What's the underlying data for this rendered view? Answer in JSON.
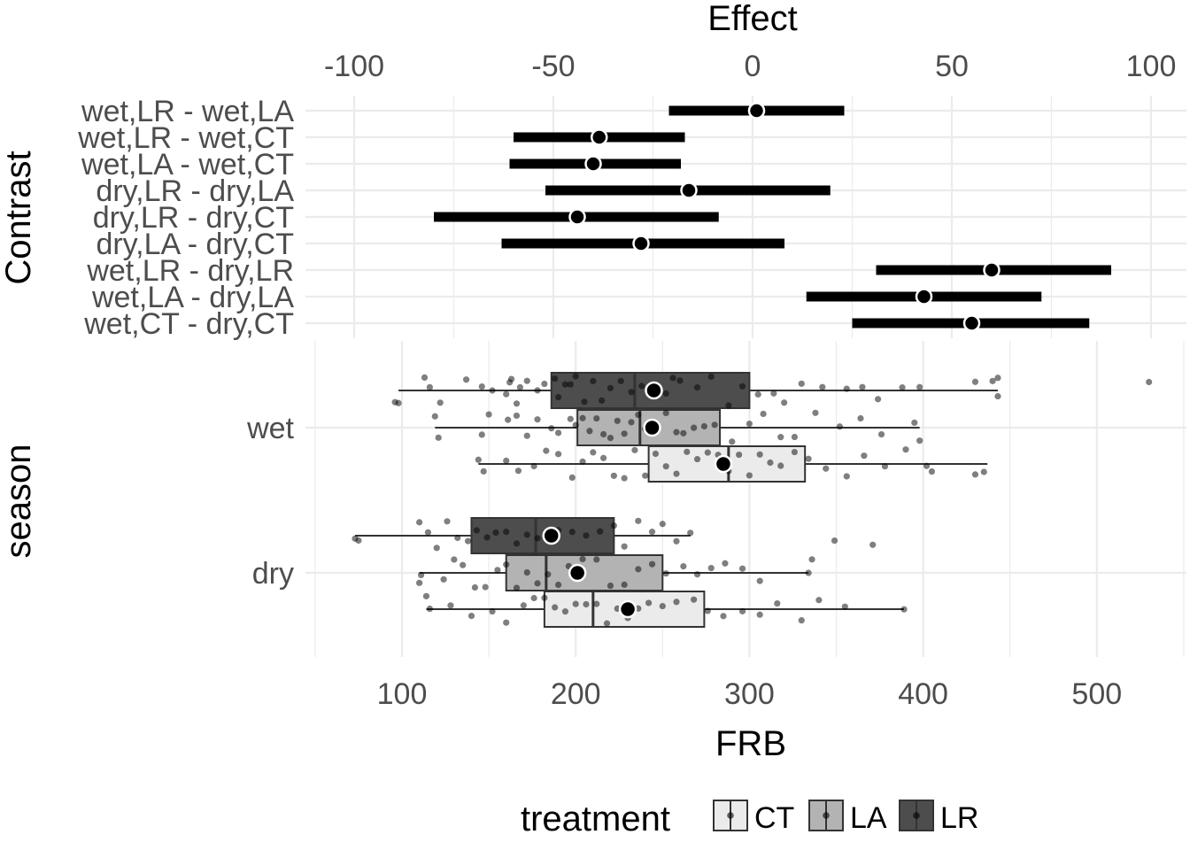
{
  "chart_data": [
    {
      "type": "errorbar",
      "title": "Effect",
      "xlabel": "Effect",
      "ylabel": "Contrast",
      "xlim": [
        -100,
        100
      ],
      "xticks": [
        "-100",
        "-50",
        "0",
        "50",
        "100"
      ],
      "xtick_values": [
        -100,
        -50,
        0,
        50,
        100
      ],
      "grid": true,
      "categories": [
        "wet,LR - wet,LA",
        "wet,LR - wet,CT",
        "wet,LA - wet,CT",
        "dry,LR - dry,LA",
        "dry,LR - dry,CT",
        "dry,LA - dry,CT",
        "wet,LR - dry,LR",
        "wet,LA - dry,LA",
        "wet,CT - dry,CT"
      ],
      "estimates": [
        1,
        -38.5,
        -40,
        -16,
        -44,
        -28,
        60,
        43,
        55
      ],
      "lower": [
        -21,
        -60,
        -61,
        -52,
        -80,
        -63,
        31,
        13.5,
        25
      ],
      "upper": [
        23,
        -17,
        -18,
        19.5,
        -8.5,
        8,
        90,
        72.5,
        84.5
      ]
    },
    {
      "type": "boxplot",
      "xlabel": "FRB",
      "ylabel": "season",
      "xlim": [
        50,
        550
      ],
      "xticks": [
        "100",
        "200",
        "300",
        "400",
        "500"
      ],
      "xtick_values": [
        100,
        200,
        300,
        400,
        500
      ],
      "grid": true,
      "categories": [
        "wet",
        "dry"
      ],
      "legend": {
        "title": "treatment",
        "position": "bottom",
        "entries": [
          "CT",
          "LA",
          "LR"
        ]
      },
      "colors": {
        "CT": "#ebebeb",
        "LA": "#b3b3b3",
        "LR": "#4d4d4d"
      },
      "series": [
        {
          "name": "LR",
          "season": "wet",
          "whisker_low": 98,
          "q1": 186,
          "median": 234,
          "q3": 300,
          "whisker_high": 443,
          "mean": 245,
          "points": [
            96,
            98,
            113,
            116,
            122,
            137,
            146,
            152,
            160,
            162,
            163,
            166,
            168,
            172,
            178,
            182,
            188,
            190,
            194,
            197,
            200,
            205,
            210,
            215,
            220,
            226,
            232,
            238,
            245,
            252,
            256,
            260,
            270,
            278,
            288,
            296,
            305,
            314,
            320,
            330,
            342,
            356,
            365,
            374,
            388,
            398,
            430,
            440,
            443,
            443,
            530
          ]
        },
        {
          "name": "LA",
          "season": "wet",
          "whisker_low": 119,
          "q1": 201,
          "median": 237,
          "q3": 283,
          "whisker_high": 398,
          "mean": 244,
          "points": [
            119,
            121,
            146,
            150,
            161,
            166,
            172,
            178,
            186,
            190,
            197,
            200,
            204,
            208,
            212,
            216,
            220,
            224,
            228,
            232,
            236,
            240,
            246,
            252,
            258,
            262,
            268,
            274,
            280,
            290,
            300,
            308,
            318,
            326,
            338,
            352,
            364,
            376,
            395,
            398
          ]
        },
        {
          "name": "CT",
          "season": "wet",
          "whisker_low": 144,
          "q1": 242,
          "median": 288,
          "q3": 332,
          "whisker_high": 437,
          "mean": 285,
          "points": [
            144,
            147,
            160,
            167,
            176,
            183,
            190,
            198,
            204,
            210,
            216,
            222,
            228,
            234,
            240,
            246,
            252,
            258,
            264,
            270,
            276,
            282,
            288,
            294,
            300,
            306,
            312,
            318,
            326,
            334,
            344,
            356,
            366,
            378,
            390,
            402,
            405,
            430,
            435
          ]
        },
        {
          "name": "LR",
          "season": "dry",
          "whisker_low": 73,
          "q1": 140,
          "median": 177,
          "q3": 222,
          "whisker_high": 266,
          "mean": 186,
          "points": [
            73,
            75,
            110,
            115,
            120,
            126,
            132,
            138,
            143,
            149,
            154,
            160,
            166,
            172,
            178,
            184,
            190,
            198,
            206,
            214,
            222,
            228,
            236,
            244,
            250,
            258,
            266,
            349,
            371
          ]
        },
        {
          "name": "LA",
          "season": "dry",
          "whisker_low": 110,
          "q1": 160,
          "median": 183,
          "q3": 250,
          "whisker_high": 334,
          "mean": 201,
          "points": [
            110,
            111,
            124,
            130,
            135,
            142,
            148,
            155,
            160,
            166,
            172,
            178,
            184,
            190,
            196,
            204,
            212,
            220,
            228,
            236,
            244,
            252,
            262,
            270,
            278,
            286,
            296,
            306,
            334,
            336
          ]
        },
        {
          "name": "CT",
          "season": "dry",
          "whisker_low": 114,
          "q1": 182,
          "median": 210,
          "q3": 274,
          "whisker_high": 389,
          "mean": 230,
          "points": [
            114,
            116,
            128,
            140,
            152,
            160,
            170,
            176,
            182,
            188,
            194,
            200,
            206,
            212,
            218,
            224,
            230,
            236,
            242,
            250,
            258,
            268,
            276,
            285,
            296,
            306,
            316,
            330,
            340,
            355,
            389
          ]
        }
      ]
    }
  ]
}
